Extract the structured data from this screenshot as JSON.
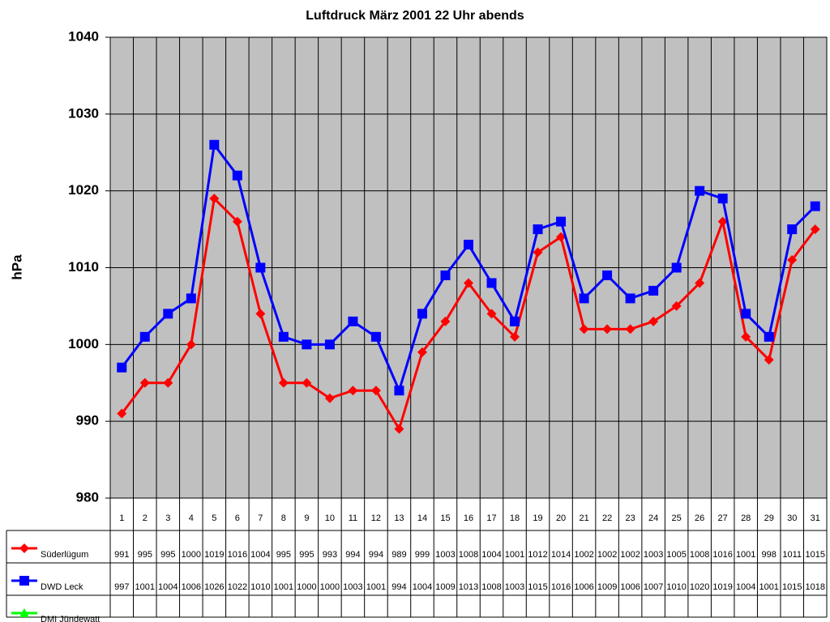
{
  "chart_data": {
    "type": "line",
    "title": "Luftdruck März 2001 22 Uhr abends",
    "y_label": "hPa",
    "categories": [
      "1",
      "2",
      "3",
      "4",
      "5",
      "6",
      "7",
      "8",
      "9",
      "10",
      "11",
      "12",
      "13",
      "14",
      "15",
      "16",
      "17",
      "18",
      "19",
      "20",
      "21",
      "22",
      "23",
      "24",
      "25",
      "26",
      "27",
      "28",
      "29",
      "30",
      "31"
    ],
    "series": [
      {
        "name": "Süderlügum",
        "color": "#ff0000",
        "marker": "diamond",
        "values": [
          991,
          995,
          995,
          1000,
          1019,
          1016,
          1004,
          995,
          995,
          993,
          994,
          994,
          989,
          999,
          1003,
          1008,
          1004,
          1001,
          1012,
          1014,
          1002,
          1002,
          1002,
          1003,
          1005,
          1008,
          1016,
          1001,
          998,
          1011,
          1015
        ]
      },
      {
        "name": "DWD Leck",
        "color": "#0000ff",
        "marker": "square",
        "values": [
          997,
          1001,
          1004,
          1006,
          1026,
          1022,
          1010,
          1001,
          1000,
          1000,
          1003,
          1001,
          994,
          1004,
          1009,
          1013,
          1008,
          1003,
          1015,
          1016,
          1006,
          1009,
          1006,
          1007,
          1010,
          1020,
          1019,
          1004,
          1001,
          1015,
          1018
        ]
      },
      {
        "name": "DMI Jündewatt",
        "color": "#00ff00",
        "marker": "triangle",
        "values": [
          null,
          null,
          null,
          null,
          null,
          null,
          null,
          null,
          null,
          null,
          null,
          null,
          null,
          null,
          null,
          null,
          null,
          null,
          null,
          null,
          null,
          null,
          null,
          null,
          null,
          null,
          null,
          null,
          null,
          null,
          null
        ]
      }
    ],
    "ylim": [
      980,
      1040
    ],
    "yticks": [
      980,
      990,
      1000,
      1010,
      1020,
      1030,
      1040
    ],
    "grid": true,
    "data_table": true
  }
}
